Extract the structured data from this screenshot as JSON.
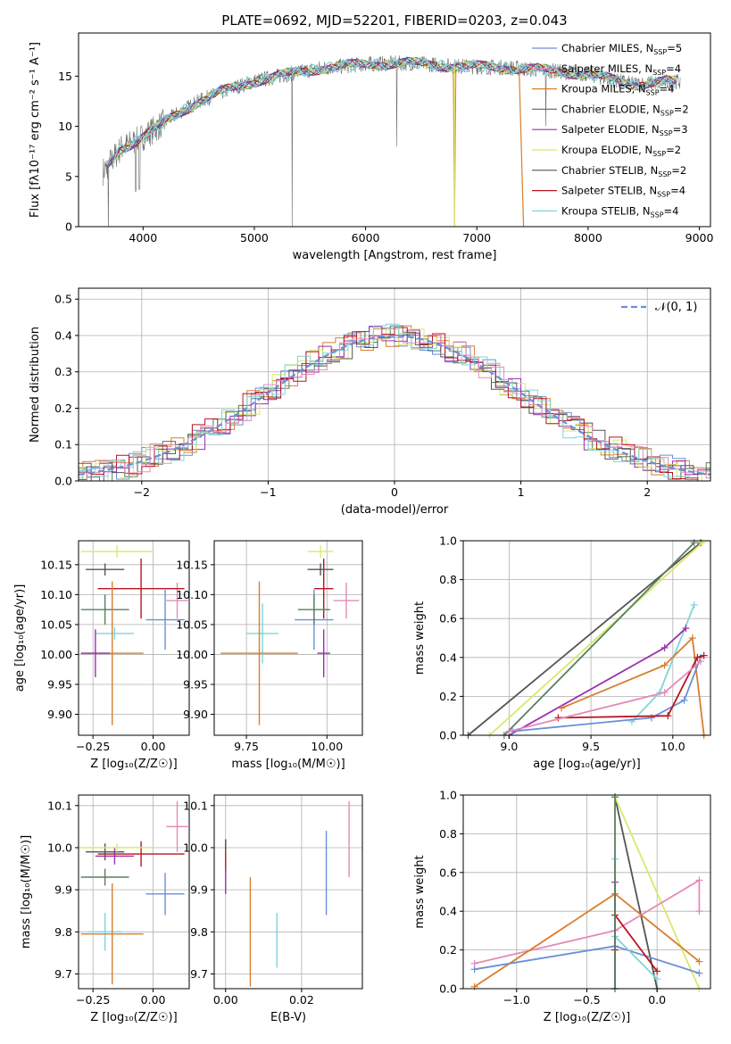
{
  "title": "PLATE=0692, MJD=52201, FIBERID=0203, z=0.043",
  "colors": [
    "#6a8fd8",
    "#d97e2e",
    "#5a7f5e",
    "#9b2fae",
    "#d9e86a",
    "#555555",
    "#b81520",
    "#7fd4dc",
    "#e58ab8"
  ],
  "chart_data": [
    {
      "id": "spectrum",
      "type": "line",
      "xlabel": "wavelength [Angstrom, rest frame]",
      "ylabel": "Flux [fλ10⁻¹⁷ erg cm⁻² s⁻¹ A⁻¹]",
      "xlim": [
        3420,
        9100
      ],
      "ylim": [
        0,
        19.3
      ],
      "xticks": [
        4000,
        5000,
        6000,
        7000,
        8000,
        9000
      ],
      "yticks": [
        0,
        5,
        10,
        15
      ],
      "grid": false,
      "legend_position": "top-right",
      "legend": [
        {
          "label": "Chabrier MILES, N",
          "sub": "SSP",
          "suffix": "=5",
          "color": "#6a8fd8"
        },
        {
          "label": "Salpeter MILES, N",
          "sub": "SSP",
          "suffix": "=4",
          "color": "#e58ab8"
        },
        {
          "label": "Kroupa MILES, N",
          "sub": "SSP",
          "suffix": "=4",
          "color": "#d97e2e"
        },
        {
          "label": "Chabrier ELODIE, N",
          "sub": "SSP",
          "suffix": "=2",
          "color": "#5a7f5e"
        },
        {
          "label": "Salpeter ELODIE, N",
          "sub": "SSP",
          "suffix": "=3",
          "color": "#9b2fae"
        },
        {
          "label": "Kroupa ELODIE, N",
          "sub": "SSP",
          "suffix": "=2",
          "color": "#d9e86a"
        },
        {
          "label": "Chabrier STELIB, N",
          "sub": "SSP",
          "suffix": "=2",
          "color": "#555555"
        },
        {
          "label": "Salpeter STELIB, N",
          "sub": "SSP",
          "suffix": "=4",
          "color": "#b81520"
        },
        {
          "label": "Kroupa STELIB, N",
          "sub": "SSP",
          "suffix": "=4",
          "color": "#7fd4dc"
        }
      ],
      "continuum": [
        [
          3640,
          5.5
        ],
        [
          3800,
          7.8
        ],
        [
          3950,
          8.6
        ],
        [
          4100,
          9.7
        ],
        [
          4300,
          11.2
        ],
        [
          4500,
          12.5
        ],
        [
          4800,
          13.8
        ],
        [
          5000,
          14.5
        ],
        [
          5300,
          15.2
        ],
        [
          5600,
          15.8
        ],
        [
          6000,
          16.2
        ],
        [
          6400,
          16.3
        ],
        [
          6800,
          16.0
        ],
        [
          7200,
          15.9
        ],
        [
          7600,
          15.6
        ],
        [
          8000,
          15.2
        ],
        [
          8400,
          14.2
        ],
        [
          8830,
          14.5
        ]
      ]
    },
    {
      "id": "residuals",
      "type": "histogram",
      "xlabel": "(data-model)/error",
      "ylabel": "Normed distribution",
      "xlim": [
        -2.5,
        2.5
      ],
      "ylim": [
        0,
        0.53
      ],
      "xticks": [
        -2,
        -1,
        0,
        1,
        2
      ],
      "yticks": [
        0.0,
        0.1,
        0.2,
        0.3,
        0.4,
        0.5
      ],
      "grid": true,
      "legend_position": "top-right",
      "legend_label": "𝒩(0, 1)"
    },
    {
      "id": "age-vs-Z",
      "type": "errorbar",
      "xlabel": "Z [log₁₀(Z/Z☉)]",
      "ylabel": "age  [log₁₀(age/yr)]",
      "xlim": [
        -0.31,
        0.15
      ],
      "ylim": [
        9.865,
        10.19
      ],
      "xticks": [
        -0.25,
        0.0
      ],
      "yticks": [
        9.9,
        9.95,
        10.0,
        10.05,
        10.1,
        10.15
      ],
      "grid": true,
      "points": [
        {
          "x": 0.1,
          "y": 10.09,
          "xerr": 0.045,
          "yerr": 0.03,
          "color": "#e58ab8"
        },
        {
          "x": 0.05,
          "y": 10.058,
          "xerr": 0.08,
          "yerr": 0.05,
          "color": "#6a8fd8"
        },
        {
          "x": -0.05,
          "y": 10.11,
          "xerr": 0.18,
          "yerr": 0.05,
          "color": "#b81520"
        },
        {
          "x": -0.2,
          "y": 10.075,
          "xerr": 0.1,
          "yerr": 0.025,
          "color": "#5a7f5e"
        },
        {
          "x": -0.16,
          "y": 10.035,
          "xerr": 0.08,
          "yerr": 0.01,
          "color": "#7fd4dc"
        },
        {
          "x": -0.17,
          "y": 10.002,
          "xerr": 0.13,
          "yerr": 0.12,
          "color": "#d97e2e"
        },
        {
          "x": -0.2,
          "y": 10.142,
          "xerr": 0.08,
          "yerr": 0.01,
          "color": "#555555"
        },
        {
          "x": -0.15,
          "y": 10.172,
          "xerr": 0.15,
          "yerr": 0.01,
          "color": "#d9e86a"
        },
        {
          "x": -0.24,
          "y": 10.002,
          "xerr": 0.06,
          "yerr": 0.04,
          "color": "#9b2fae"
        }
      ]
    },
    {
      "id": "age-vs-mass",
      "type": "errorbar",
      "xlabel": "mass [log₁₀(M/M☉)]",
      "xlim": [
        9.65,
        10.11
      ],
      "ylim": [
        9.865,
        10.19
      ],
      "xticks": [
        9.75,
        10.0
      ],
      "yticks": [
        9.9,
        9.95,
        10.0,
        10.05,
        10.1,
        10.15
      ],
      "grid": true,
      "points": [
        {
          "x": 10.06,
          "y": 10.09,
          "xerr": 0.04,
          "yerr": 0.03,
          "color": "#e58ab8"
        },
        {
          "x": 9.96,
          "y": 10.058,
          "xerr": 0.06,
          "yerr": 0.05,
          "color": "#6a8fd8"
        },
        {
          "x": 9.99,
          "y": 10.11,
          "xerr": 0.03,
          "yerr": 0.05,
          "color": "#b81520"
        },
        {
          "x": 9.96,
          "y": 10.075,
          "xerr": 0.05,
          "yerr": 0.025,
          "color": "#5a7f5e"
        },
        {
          "x": 9.8,
          "y": 10.035,
          "xerr": 0.05,
          "yerr": 0.05,
          "color": "#7fd4dc"
        },
        {
          "x": 9.79,
          "y": 10.002,
          "xerr": 0.12,
          "yerr": 0.12,
          "color": "#d97e2e"
        },
        {
          "x": 9.98,
          "y": 10.142,
          "xerr": 0.04,
          "yerr": 0.01,
          "color": "#555555"
        },
        {
          "x": 9.98,
          "y": 10.172,
          "xerr": 0.04,
          "yerr": 0.01,
          "color": "#d9e86a"
        },
        {
          "x": 9.99,
          "y": 10.002,
          "xerr": 0.02,
          "yerr": 0.04,
          "color": "#9b2fae"
        }
      ]
    },
    {
      "id": "weight-vs-age",
      "type": "line",
      "xlabel": "age  [log₁₀(age/yr)]",
      "ylabel": "mass weight",
      "xlim": [
        8.72,
        10.23
      ],
      "ylim": [
        0,
        1
      ],
      "xticks": [
        9.0,
        9.5,
        10.0
      ],
      "yticks": [
        0.0,
        0.2,
        0.4,
        0.6,
        0.8,
        1.0
      ],
      "grid": true,
      "series": [
        {
          "color": "#555555",
          "x": [
            8.75,
            10.17
          ],
          "y": [
            0.0,
            0.99
          ]
        },
        {
          "color": "#d9e86a",
          "x": [
            8.88,
            10.18
          ],
          "y": [
            0.0,
            0.99
          ]
        },
        {
          "color": "#5a7f5e",
          "x": [
            8.97,
            10.13
          ],
          "y": [
            0.0,
            0.99
          ]
        },
        {
          "color": "#7fd4dc",
          "x": [
            9.75,
            9.92,
            10.13
          ],
          "y": [
            0.07,
            0.22,
            0.67
          ]
        },
        {
          "color": "#9b2fae",
          "x": [
            9.0,
            9.95,
            10.08
          ],
          "y": [
            0.0,
            0.45,
            0.55
          ]
        },
        {
          "color": "#d97e2e",
          "x": [
            9.32,
            9.95,
            10.12,
            10.19
          ],
          "y": [
            0.14,
            0.36,
            0.5,
            0.0
          ]
        },
        {
          "color": "#6a8fd8",
          "x": [
            9.02,
            9.87,
            10.07,
            10.17
          ],
          "y": [
            0.02,
            0.09,
            0.18,
            0.4
          ]
        },
        {
          "color": "#b81520",
          "x": [
            9.3,
            9.97,
            10.15,
            10.19
          ],
          "y": [
            0.09,
            0.1,
            0.4,
            0.41
          ]
        },
        {
          "color": "#e58ab8",
          "x": [
            9.0,
            9.95,
            10.17
          ],
          "y": [
            0.02,
            0.22,
            0.38
          ]
        }
      ]
    },
    {
      "id": "mass-vs-Z",
      "type": "errorbar",
      "xlabel": "Z [log₁₀(Z/Z☉)]",
      "ylabel": "mass [log₁₀(M/M☉)]",
      "xlim": [
        -0.31,
        0.15
      ],
      "ylim": [
        9.665,
        10.125
      ],
      "xticks": [
        -0.25,
        0.0
      ],
      "yticks": [
        9.7,
        9.8,
        9.9,
        10.0,
        10.1
      ],
      "grid": true,
      "points": [
        {
          "x": 0.1,
          "y": 10.05,
          "xerr": 0.045,
          "yerr": 0.06,
          "color": "#e58ab8"
        },
        {
          "x": 0.05,
          "y": 9.89,
          "xerr": 0.08,
          "yerr": 0.05,
          "color": "#6a8fd8"
        },
        {
          "x": -0.05,
          "y": 9.985,
          "xerr": 0.18,
          "yerr": 0.03,
          "color": "#b81520"
        },
        {
          "x": -0.2,
          "y": 9.93,
          "xerr": 0.1,
          "yerr": 0.02,
          "color": "#5a7f5e"
        },
        {
          "x": -0.16,
          "y": 9.98,
          "xerr": 0.08,
          "yerr": 0.02,
          "color": "#9b2fae"
        },
        {
          "x": -0.2,
          "y": 9.99,
          "xerr": 0.08,
          "yerr": 0.02,
          "color": "#555555"
        },
        {
          "x": -0.15,
          "y": 10.0,
          "xerr": 0.15,
          "yerr": 0.01,
          "color": "#d9e86a"
        },
        {
          "x": -0.2,
          "y": 9.8,
          "xerr": 0.07,
          "yerr": 0.045,
          "color": "#7fd4dc"
        },
        {
          "x": -0.17,
          "y": 9.795,
          "xerr": 0.13,
          "yerr": 0.12,
          "color": "#d97e2e"
        }
      ]
    },
    {
      "id": "mass-vs-ebv",
      "type": "errorbar",
      "xlabel": "E(B-V)",
      "xlim": [
        -0.003,
        0.036
      ],
      "ylim": [
        9.665,
        10.125
      ],
      "xticks": [
        0.0,
        0.02
      ],
      "yticks": [
        9.7,
        9.8,
        9.9,
        10.0,
        10.1
      ],
      "grid": true,
      "points": [
        {
          "x": 0.0,
          "y": 9.98,
          "xerr": 0,
          "yerr": 0.04,
          "color": "#b81520"
        },
        {
          "x": 0.0,
          "y": 9.92,
          "xerr": 0,
          "yerr": 0.03,
          "color": "#9b2fae"
        },
        {
          "x": 0.0,
          "y": 10.0,
          "xerr": 0,
          "yerr": 0.015,
          "color": "#555555"
        },
        {
          "x": 0.0065,
          "y": 9.8,
          "xerr": 0,
          "yerr": 0.13,
          "color": "#d97e2e"
        },
        {
          "x": 0.0135,
          "y": 9.78,
          "xerr": 0,
          "yerr": 0.065,
          "color": "#7fd4dc"
        },
        {
          "x": 0.0265,
          "y": 9.94,
          "xerr": 0,
          "yerr": 0.1,
          "color": "#6a8fd8"
        },
        {
          "x": 0.0325,
          "y": 10.02,
          "xerr": 0,
          "yerr": 0.09,
          "color": "#e58ab8"
        }
      ]
    },
    {
      "id": "weight-vs-Z",
      "type": "line",
      "xlabel": "Z [log₁₀(Z/Z☉)]",
      "ylabel": "mass weight",
      "xlim": [
        -1.38,
        0.38
      ],
      "ylim": [
        0,
        1
      ],
      "xticks": [
        -1.0,
        -0.5,
        0.0
      ],
      "yticks": [
        0.0,
        0.2,
        0.4,
        0.6,
        0.8,
        1.0
      ],
      "grid": true,
      "series": [
        {
          "color": "#555555",
          "x": [
            -0.3,
            0.0
          ],
          "y": [
            0.99,
            0.0
          ]
        },
        {
          "color": "#d9e86a",
          "x": [
            -0.3,
            0.3
          ],
          "y": [
            0.99,
            0.0
          ]
        },
        {
          "color": "#e58ab8",
          "x": [
            -1.3,
            -0.3,
            0.3,
            0.3
          ],
          "y": [
            0.13,
            0.3,
            0.56,
            0.4
          ]
        },
        {
          "color": "#d97e2e",
          "x": [
            -1.3,
            -0.3,
            0.3
          ],
          "y": [
            0.01,
            0.49,
            0.14
          ]
        },
        {
          "color": "#6a8fd8",
          "x": [
            -1.3,
            -0.3,
            0.3
          ],
          "y": [
            0.1,
            0.22,
            0.08
          ]
        },
        {
          "color": "#b81520",
          "x": [
            -0.3,
            -0.3,
            0.0
          ],
          "y": [
            0.2,
            0.38,
            0.09
          ]
        },
        {
          "color": "#7fd4dc",
          "x": [
            -0.3,
            -0.3,
            0.0
          ],
          "y": [
            0.67,
            0.27,
            0.05
          ]
        },
        {
          "color": "#9b2fae",
          "x": [
            -0.3,
            -0.3
          ],
          "y": [
            0.55,
            0.0
          ]
        },
        {
          "color": "#5a7f5e",
          "x": [
            -0.3,
            -0.3
          ],
          "y": [
            0.99,
            0.0
          ]
        }
      ]
    }
  ]
}
